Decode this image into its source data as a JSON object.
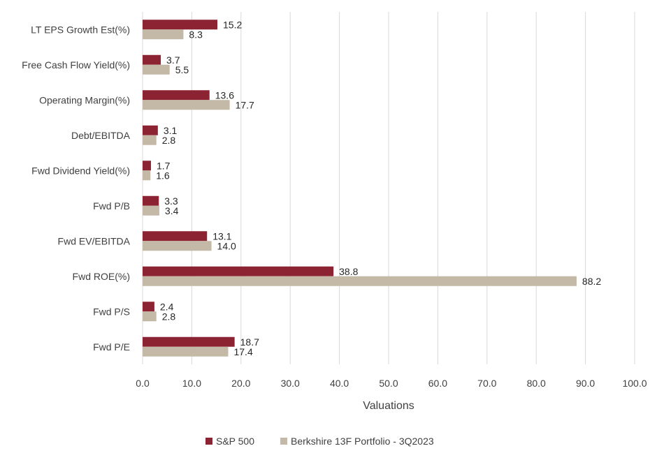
{
  "chart_data": {
    "type": "bar",
    "orientation": "horizontal",
    "categories": [
      "LT EPS Growth Est(%)",
      "Free Cash Flow Yield(%)",
      "Operating Margin(%)",
      "Debt/EBITDA",
      "Fwd Dividend Yield(%)",
      "Fwd P/B",
      "Fwd EV/EBITDA",
      "Fwd ROE(%)",
      "Fwd P/S",
      "Fwd P/E"
    ],
    "series": [
      {
        "name": "S&P 500",
        "color": "#8b2332",
        "values": [
          15.2,
          3.7,
          13.6,
          3.1,
          1.7,
          3.3,
          13.1,
          38.8,
          2.4,
          18.7
        ],
        "labels": [
          "15.2",
          "3.7",
          "13.6",
          "3.1",
          "1.7",
          "3.3",
          "13.1",
          "38.8",
          "2.4",
          "18.7"
        ]
      },
      {
        "name": "Berkshire 13F Portfolio - 3Q2023",
        "color": "#c4b8a6",
        "values": [
          8.3,
          5.5,
          17.7,
          2.8,
          1.6,
          3.4,
          14.0,
          88.2,
          2.8,
          17.4
        ],
        "labels": [
          "8.3",
          "5.5",
          "17.7",
          "2.8",
          "1.6",
          "3.4",
          "14.0",
          "88.2",
          "2.8",
          "17.4"
        ]
      }
    ],
    "xlabel": "Valuations",
    "ylabel": "",
    "title": "",
    "xlim": [
      0,
      100
    ],
    "xticks": [
      0,
      10,
      20,
      30,
      40,
      50,
      60,
      70,
      80,
      90,
      100
    ],
    "xtick_labels": [
      "0.0",
      "10.0",
      "20.0",
      "30.0",
      "40.0",
      "50.0",
      "60.0",
      "70.0",
      "80.0",
      "90.0",
      "100.0"
    ],
    "grid": true,
    "legend_position": "bottom"
  }
}
